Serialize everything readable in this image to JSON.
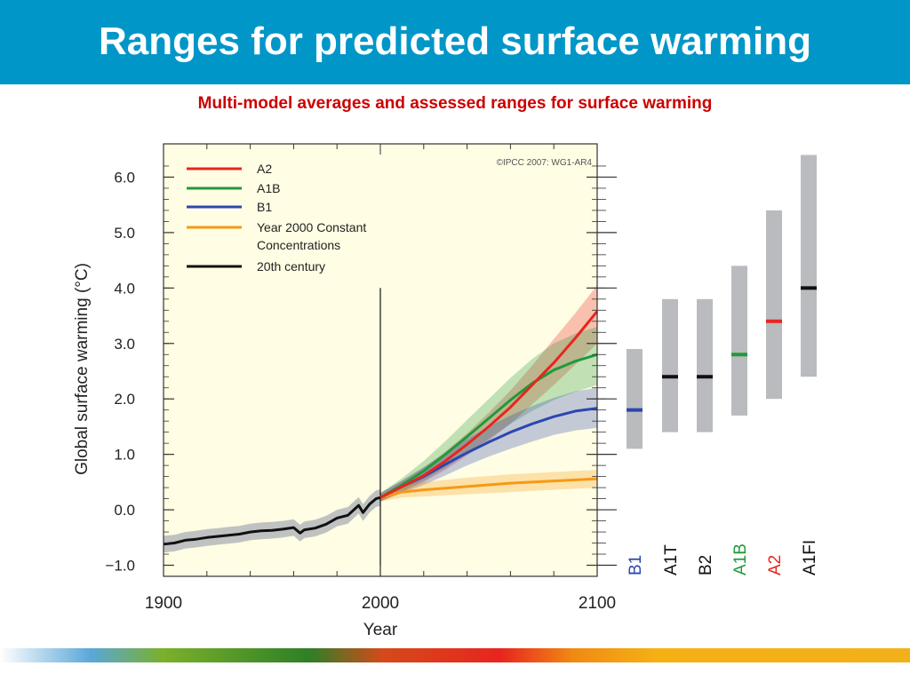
{
  "slide": {
    "title": "Ranges for predicted surface warming",
    "subtitle": "Multi-model averages and assessed ranges for surface warming"
  },
  "colors": {
    "title_bar": "#0096c8",
    "subtitle": "#cc0000",
    "plot_background": "#fffde3",
    "A2": "#e8251f",
    "A1B": "#1f9a3c",
    "B1": "#2b48b0",
    "constant": "#f59a12",
    "twentieth": "#111111",
    "range_bar": "#b9bbbe"
  },
  "chart_data": [
    {
      "type": "line",
      "copyright": "©IPCC 2007: WG1-AR4",
      "xlabel": "Year",
      "ylabel": "Global surface warming (°C)",
      "xlim": [
        1900,
        2100
      ],
      "ylim": [
        -1.2,
        6.6
      ],
      "xticks": [
        1900,
        2000,
        2100
      ],
      "yticks": [
        -1.0,
        0.0,
        1.0,
        2.0,
        3.0,
        4.0,
        5.0,
        6.0
      ],
      "ytick_labels": [
        "−1.0",
        "0.0",
        "1.0",
        "2.0",
        "3.0",
        "4.0",
        "5.0",
        "6.0"
      ],
      "vertical_marker_x": 2000,
      "legend_position": "top-left",
      "legend": [
        "A2",
        "A1B",
        "B1",
        "Year 2000 Constant Concentrations",
        "20th century"
      ],
      "series": [
        {
          "name": "20th century",
          "color_key": "twentieth",
          "x": [
            1900,
            1905,
            1910,
            1915,
            1920,
            1925,
            1930,
            1935,
            1940,
            1945,
            1950,
            1955,
            1960,
            1963,
            1965,
            1970,
            1975,
            1980,
            1985,
            1990,
            1992,
            1995,
            1998,
            2000
          ],
          "y": [
            -0.62,
            -0.6,
            -0.55,
            -0.53,
            -0.5,
            -0.48,
            -0.46,
            -0.44,
            -0.4,
            -0.38,
            -0.37,
            -0.35,
            -0.32,
            -0.42,
            -0.36,
            -0.33,
            -0.26,
            -0.15,
            -0.1,
            0.08,
            -0.05,
            0.1,
            0.2,
            0.22
          ],
          "uncertainty": 0.15
        },
        {
          "name": "A2",
          "color_key": "A2",
          "x": [
            2000,
            2010,
            2020,
            2030,
            2040,
            2050,
            2060,
            2070,
            2080,
            2090,
            2100
          ],
          "y": [
            0.22,
            0.42,
            0.62,
            0.88,
            1.18,
            1.5,
            1.85,
            2.25,
            2.65,
            3.1,
            3.58
          ],
          "lower": [
            0.15,
            0.32,
            0.5,
            0.72,
            0.98,
            1.25,
            1.55,
            1.9,
            2.25,
            2.62,
            3.0
          ],
          "upper": [
            0.3,
            0.52,
            0.76,
            1.05,
            1.38,
            1.75,
            2.15,
            2.6,
            3.08,
            3.55,
            4.05
          ]
        },
        {
          "name": "A1B",
          "color_key": "A1B",
          "x": [
            2000,
            2010,
            2020,
            2030,
            2040,
            2050,
            2060,
            2070,
            2080,
            2090,
            2100
          ],
          "y": [
            0.22,
            0.45,
            0.7,
            1.0,
            1.32,
            1.65,
            1.98,
            2.28,
            2.52,
            2.68,
            2.8
          ],
          "lower": [
            0.15,
            0.33,
            0.53,
            0.76,
            1.02,
            1.28,
            1.55,
            1.78,
            1.98,
            2.13,
            2.25
          ],
          "upper": [
            0.3,
            0.57,
            0.88,
            1.24,
            1.62,
            2.0,
            2.38,
            2.72,
            3.0,
            3.18,
            3.3
          ]
        },
        {
          "name": "B1",
          "color_key": "B1",
          "x": [
            2000,
            2010,
            2020,
            2030,
            2040,
            2050,
            2060,
            2070,
            2080,
            2090,
            2100
          ],
          "y": [
            0.22,
            0.42,
            0.6,
            0.82,
            1.03,
            1.22,
            1.4,
            1.55,
            1.68,
            1.78,
            1.83
          ],
          "lower": [
            0.15,
            0.3,
            0.45,
            0.62,
            0.8,
            0.96,
            1.1,
            1.23,
            1.35,
            1.43,
            1.48
          ],
          "upper": [
            0.3,
            0.53,
            0.77,
            1.02,
            1.28,
            1.5,
            1.7,
            1.87,
            2.02,
            2.14,
            2.2
          ]
        },
        {
          "name": "Year 2000 Constant Concentrations",
          "color_key": "constant",
          "x": [
            2000,
            2010,
            2020,
            2030,
            2040,
            2050,
            2060,
            2070,
            2080,
            2090,
            2100
          ],
          "y": [
            0.22,
            0.32,
            0.36,
            0.39,
            0.42,
            0.45,
            0.48,
            0.5,
            0.52,
            0.54,
            0.56
          ],
          "lower": [
            0.15,
            0.22,
            0.24,
            0.26,
            0.28,
            0.3,
            0.32,
            0.34,
            0.36,
            0.38,
            0.4
          ],
          "upper": [
            0.28,
            0.44,
            0.5,
            0.54,
            0.58,
            0.61,
            0.64,
            0.66,
            0.68,
            0.7,
            0.72
          ]
        }
      ]
    },
    {
      "type": "bar",
      "description_type": "range bars",
      "categories": [
        "B1",
        "A1T",
        "B2",
        "A1B",
        "A2",
        "A1FI"
      ],
      "best_estimate": [
        1.8,
        2.4,
        2.4,
        2.8,
        3.4,
        4.0
      ],
      "low": [
        1.1,
        1.4,
        1.4,
        1.7,
        2.0,
        2.4
      ],
      "high": [
        2.9,
        3.8,
        3.8,
        4.4,
        5.4,
        6.4
      ],
      "marker_color_keys": [
        "B1",
        "twentieth",
        "twentieth",
        "A1B",
        "A2",
        "twentieth"
      ],
      "label_color_keys": [
        "B1",
        "twentieth",
        "twentieth",
        "A1B",
        "A2",
        "twentieth"
      ],
      "ylim": [
        -1.2,
        6.6
      ]
    }
  ]
}
